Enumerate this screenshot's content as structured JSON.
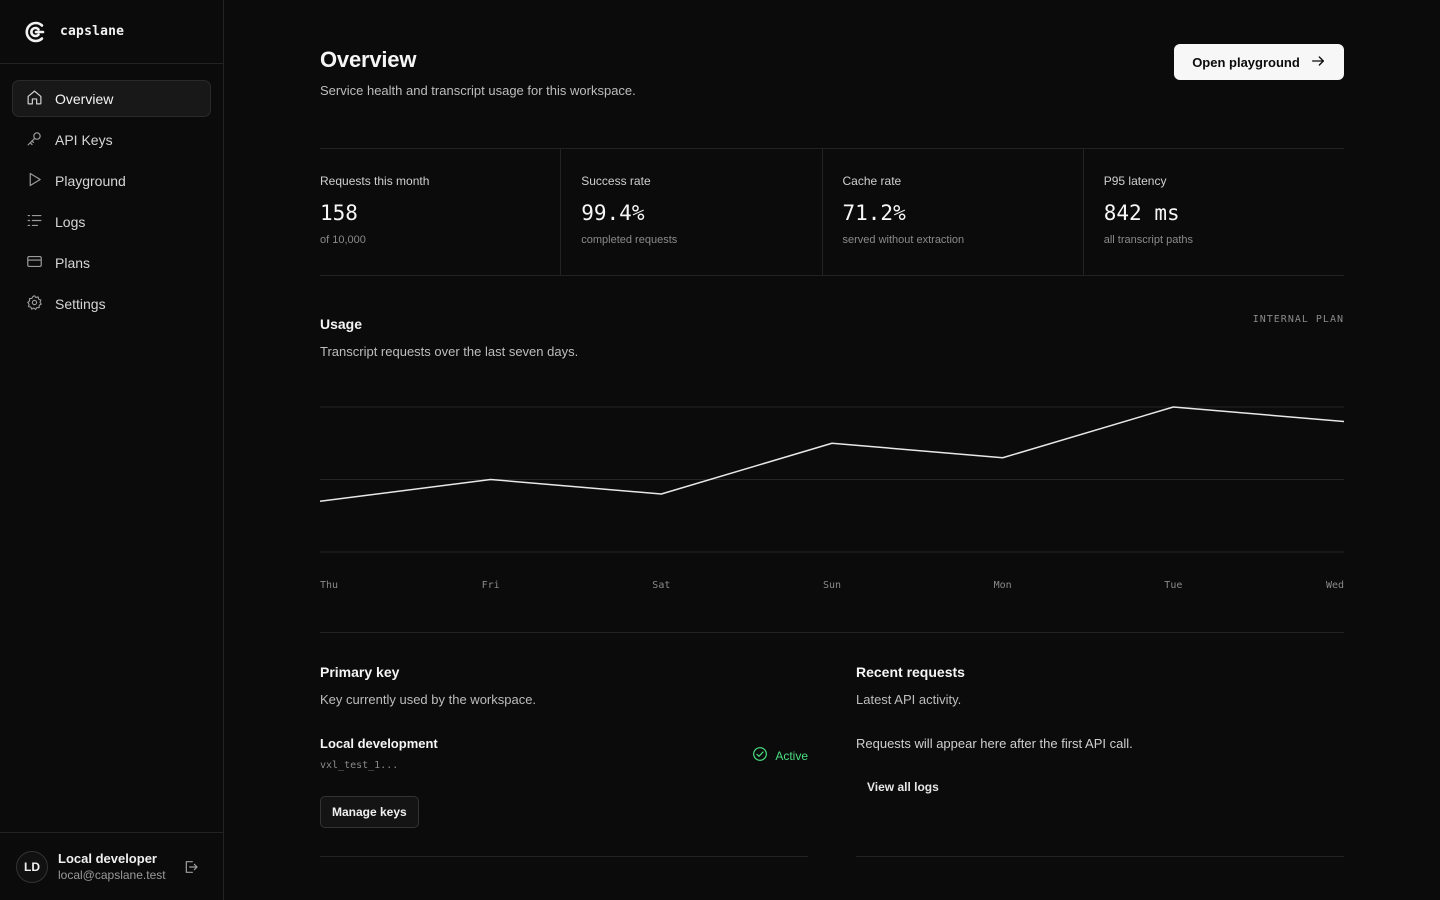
{
  "brand": {
    "name": "capslane",
    "logo_icon": "capslane-logo-icon"
  },
  "sidebar": {
    "items": [
      {
        "label": "Overview",
        "icon": "home-icon",
        "active": true
      },
      {
        "label": "API Keys",
        "icon": "key-icon",
        "active": false
      },
      {
        "label": "Playground",
        "icon": "play-icon",
        "active": false
      },
      {
        "label": "Logs",
        "icon": "list-icon",
        "active": false
      },
      {
        "label": "Plans",
        "icon": "credit-card-icon",
        "active": false
      },
      {
        "label": "Settings",
        "icon": "gear-icon",
        "active": false
      }
    ]
  },
  "user": {
    "initials": "LD",
    "name": "Local developer",
    "email": "local@capslane.test",
    "logout_icon": "logout-icon"
  },
  "header": {
    "title": "Overview",
    "subtitle": "Service health and transcript usage for this workspace.",
    "action_label": "Open playground"
  },
  "stats": [
    {
      "label": "Requests this month",
      "value": "158",
      "sub": "of 10,000"
    },
    {
      "label": "Success rate",
      "value": "99.4%",
      "sub": "completed requests"
    },
    {
      "label": "Cache rate",
      "value": "71.2%",
      "sub": "served without extraction"
    },
    {
      "label": "P95 latency",
      "value": "842 ms",
      "sub": "all transcript paths"
    }
  ],
  "usage": {
    "title": "Usage",
    "subtitle": "Transcript requests over the last seven days.",
    "plan_tag": "INTERNAL PLAN"
  },
  "chart_data": {
    "type": "line",
    "categories": [
      "Thu",
      "Fri",
      "Sat",
      "Sun",
      "Mon",
      "Tue",
      "Wed"
    ],
    "values": [
      14,
      20,
      16,
      30,
      26,
      40,
      36
    ],
    "ylim": [
      0,
      40
    ],
    "grid": true,
    "line_color": "#e8e8e8"
  },
  "primary_key": {
    "title": "Primary key",
    "subtitle": "Key currently used by the workspace.",
    "name": "Local development",
    "masked": "vxl_test_1...",
    "status": "Active",
    "status_color": "#4ade80",
    "manage_label": "Manage keys"
  },
  "recent_requests": {
    "title": "Recent requests",
    "subtitle": "Latest API activity.",
    "empty_message": "Requests will appear here after the first API call.",
    "link_label": "View all logs"
  }
}
